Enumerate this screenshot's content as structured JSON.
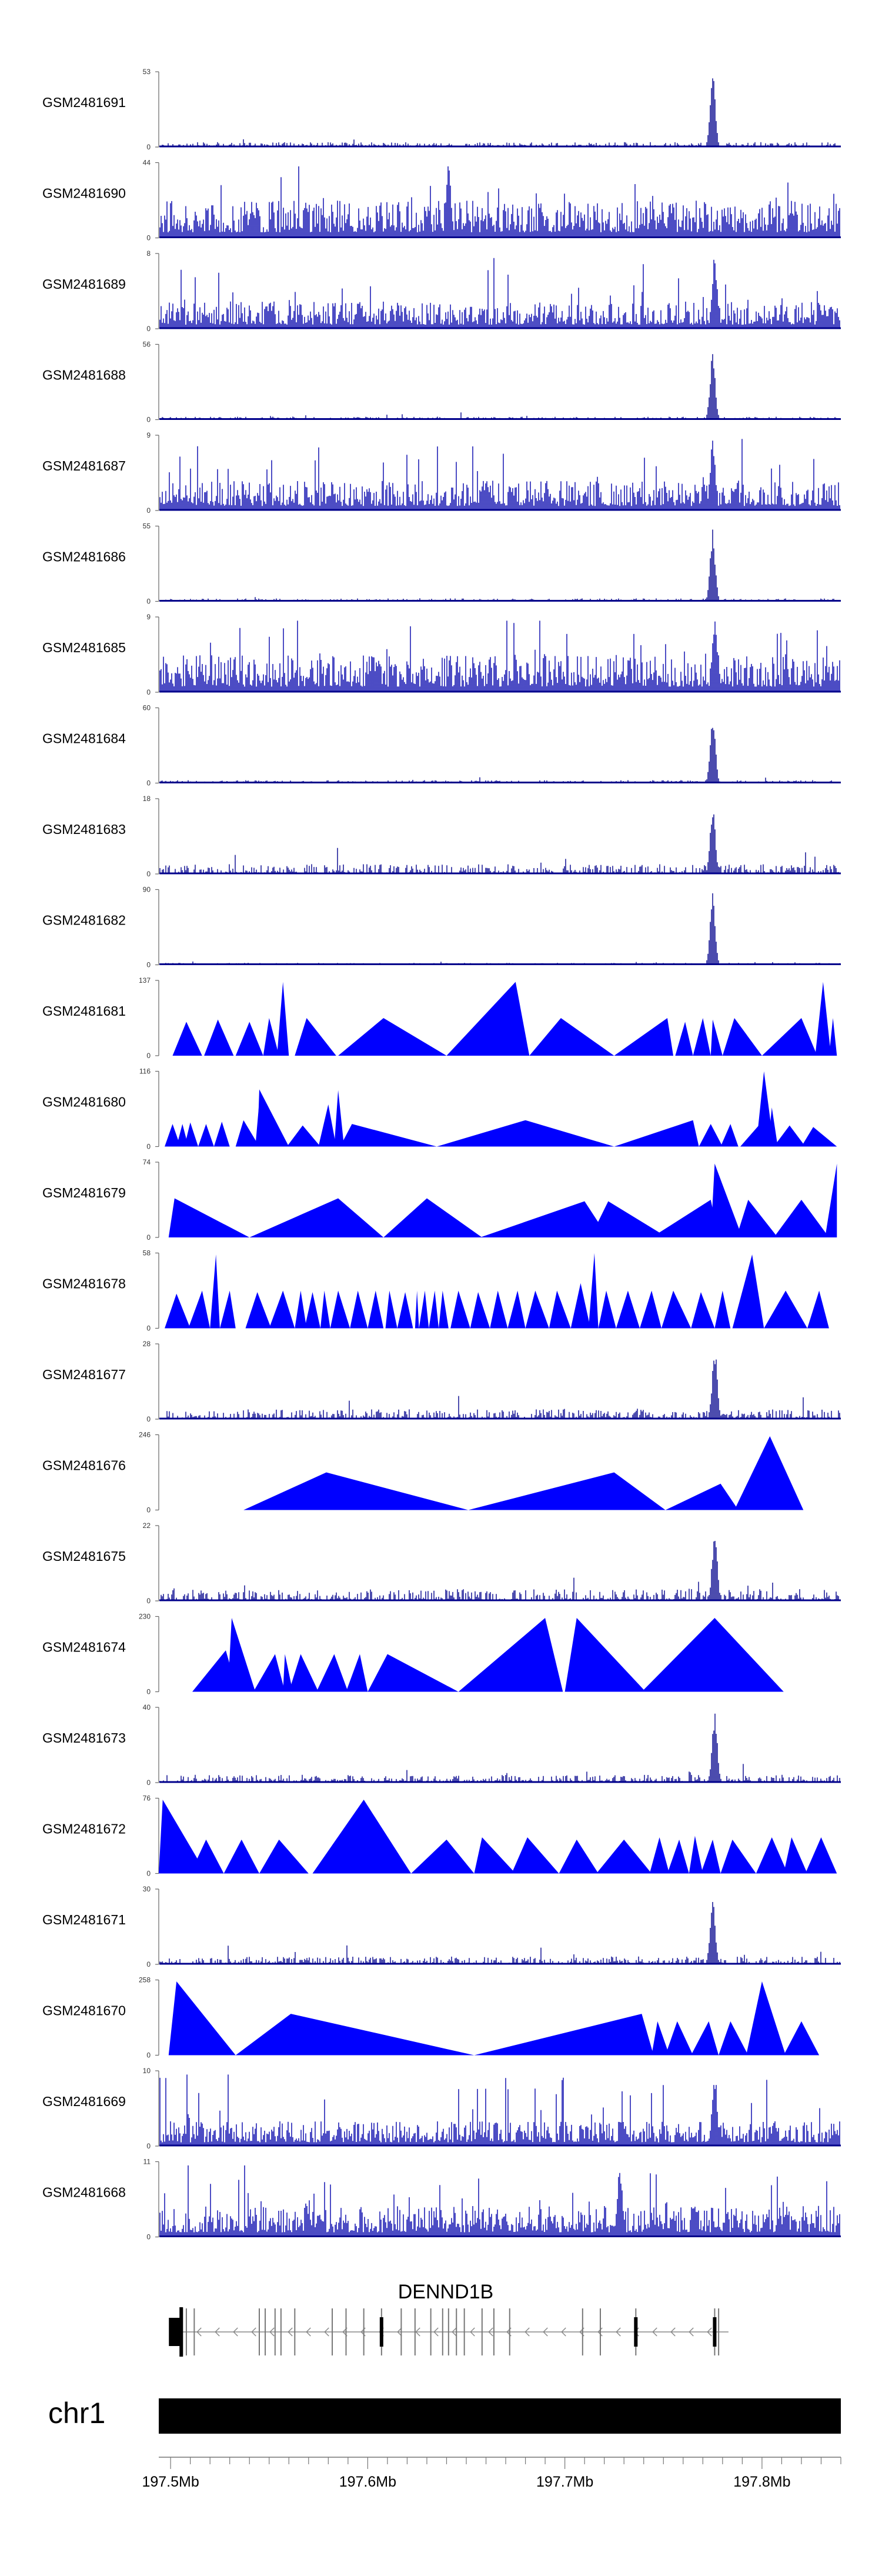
{
  "chart_data": {
    "type": "genome-track-area",
    "chromosome": "chr1",
    "gene": {
      "name": "DENND1B",
      "strand": "-",
      "start_mb": 197.506,
      "end_mb": 197.783,
      "exons_mb": [
        197.506,
        197.508,
        197.512,
        197.545,
        197.548,
        197.553,
        197.556,
        197.563,
        197.582,
        197.589,
        197.598,
        197.607,
        197.617,
        197.624,
        197.632,
        197.638,
        197.641,
        197.645,
        197.649,
        197.658,
        197.664,
        197.672,
        197.709,
        197.718,
        197.736,
        197.776,
        197.778
      ]
    },
    "x_axis": {
      "min_mb": 197.494,
      "max_mb": 197.84,
      "ticks_mb": [
        197.5,
        197.6,
        197.7,
        197.8
      ],
      "tick_labels": [
        "197.5Mb",
        "197.6Mb",
        "197.7Mb",
        "197.8Mb"
      ]
    },
    "series": [
      {
        "name": "GSM2481691",
        "ymax": "53",
        "pattern": "peak",
        "level": 0.05,
        "peak_mb": 197.775,
        "peak": 0.98
      },
      {
        "name": "GSM2481690",
        "ymax": "44",
        "pattern": "dense",
        "level": 0.3,
        "peak_mb": 197.641,
        "peak": 0.98
      },
      {
        "name": "GSM2481689",
        "ymax": "8",
        "pattern": "dense",
        "level": 0.22,
        "peak_mb": 197.776,
        "peak": 0.98
      },
      {
        "name": "GSM2481688",
        "ymax": "56",
        "pattern": "peak",
        "level": 0.03,
        "peak_mb": 197.775,
        "peak": 0.97
      },
      {
        "name": "GSM2481687",
        "ymax": "9",
        "pattern": "dense",
        "level": 0.24,
        "peak_mb": 197.775,
        "peak": 0.98
      },
      {
        "name": "GSM2481686",
        "ymax": "55",
        "pattern": "peak",
        "level": 0.03,
        "peak_mb": 197.775,
        "peak": 0.97
      },
      {
        "name": "GSM2481685",
        "ymax": "9",
        "pattern": "dense",
        "level": 0.3,
        "peak_mb": 197.776,
        "peak": 0.98
      },
      {
        "name": "GSM2481684",
        "ymax": "60",
        "pattern": "peak",
        "level": 0.03,
        "peak_mb": 197.775,
        "peak": 0.97
      },
      {
        "name": "GSM2481683",
        "ymax": "18",
        "pattern": "peak",
        "level": 0.1,
        "peak_mb": 197.775,
        "peak": 0.97
      },
      {
        "name": "GSM2481682",
        "ymax": "90",
        "pattern": "peak",
        "level": 0.02,
        "peak_mb": 197.775,
        "peak": 0.98
      },
      {
        "name": "GSM2481681",
        "ymax": "137",
        "pattern": "tri",
        "peaks": [
          [
            197.501,
            197.508,
            197.516,
            0.45
          ],
          [
            197.517,
            197.524,
            197.532,
            0.48
          ],
          [
            197.533,
            197.54,
            197.547,
            0.45
          ],
          [
            197.547,
            197.55,
            197.555,
            0.5
          ],
          [
            197.554,
            197.557,
            197.56,
            0.98
          ],
          [
            197.563,
            197.569,
            197.584,
            0.5
          ],
          [
            197.585,
            197.608,
            197.64,
            0.5
          ],
          [
            197.64,
            197.675,
            197.682,
            0.98
          ],
          [
            197.682,
            197.698,
            197.725,
            0.5
          ],
          [
            197.725,
            197.752,
            197.755,
            0.5
          ],
          [
            197.756,
            197.761,
            197.765,
            0.45
          ],
          [
            197.765,
            197.77,
            197.774,
            0.5
          ],
          [
            197.774,
            197.775,
            197.78,
            0.48
          ],
          [
            197.78,
            197.786,
            197.8,
            0.5
          ],
          [
            197.8,
            197.82,
            197.828,
            0.5
          ],
          [
            197.827,
            197.831,
            197.835,
            0.98
          ],
          [
            197.834,
            197.836,
            197.838,
            0.5
          ]
        ]
      },
      {
        "name": "GSM2481680",
        "ymax": "116",
        "pattern": "tri",
        "peaks": [
          [
            197.497,
            197.501,
            197.505,
            0.3
          ],
          [
            197.503,
            197.506,
            197.509,
            0.3
          ],
          [
            197.507,
            197.51,
            197.514,
            0.32
          ],
          [
            197.514,
            197.518,
            197.522,
            0.3
          ],
          [
            197.522,
            197.526,
            197.53,
            0.33
          ],
          [
            197.533,
            197.537,
            197.545,
            0.35
          ],
          [
            197.543,
            197.545,
            197.546,
            0.6
          ],
          [
            197.544,
            197.545,
            197.56,
            0.76
          ],
          [
            197.559,
            197.567,
            197.576,
            0.28
          ],
          [
            197.575,
            197.58,
            197.584,
            0.56
          ],
          [
            197.583,
            197.585,
            197.588,
            0.75
          ],
          [
            197.586,
            197.592,
            197.635,
            0.3
          ],
          [
            197.635,
            197.68,
            197.725,
            0.35
          ],
          [
            197.725,
            197.765,
            197.768,
            0.35
          ],
          [
            197.768,
            197.774,
            197.78,
            0.3
          ],
          [
            197.779,
            197.784,
            197.788,
            0.3
          ],
          [
            197.789,
            197.799,
            197.801,
            0.3
          ],
          [
            197.797,
            197.801,
            197.806,
            1.0
          ],
          [
            197.803,
            197.805,
            197.808,
            0.52
          ],
          [
            197.806,
            197.814,
            197.822,
            0.28
          ],
          [
            197.82,
            197.826,
            197.838,
            0.26
          ]
        ]
      },
      {
        "name": "GSM2481679",
        "ymax": "74",
        "pattern": "tri",
        "peaks": [
          [
            197.499,
            197.502,
            197.54,
            0.52
          ],
          [
            197.54,
            197.585,
            197.608,
            0.52
          ],
          [
            197.608,
            197.63,
            197.658,
            0.52
          ],
          [
            197.657,
            197.71,
            197.722,
            0.48
          ],
          [
            197.713,
            197.722,
            197.752,
            0.48
          ],
          [
            197.744,
            197.774,
            197.778,
            0.5
          ],
          [
            197.774,
            197.776,
            197.79,
            0.98
          ],
          [
            197.787,
            197.793,
            197.808,
            0.5
          ],
          [
            197.806,
            197.82,
            197.834,
            0.5
          ],
          [
            197.832,
            197.838,
            197.838,
            0.98
          ]
        ]
      },
      {
        "name": "GSM2481678",
        "ymax": "58",
        "pattern": "tri",
        "peaks": [
          [
            197.497,
            197.503,
            197.51,
            0.46
          ],
          [
            197.509,
            197.516,
            197.52,
            0.5
          ],
          [
            197.52,
            197.523,
            197.525,
            0.98
          ],
          [
            197.525,
            197.53,
            197.533,
            0.5
          ],
          [
            197.538,
            197.544,
            197.551,
            0.48
          ],
          [
            197.55,
            197.557,
            197.563,
            0.5
          ],
          [
            197.563,
            197.566,
            197.569,
            0.5
          ],
          [
            197.568,
            197.572,
            197.576,
            0.48
          ],
          [
            197.576,
            197.578,
            197.581,
            0.5
          ],
          [
            197.581,
            197.585,
            197.591,
            0.5
          ],
          [
            197.591,
            197.595,
            197.6,
            0.5
          ],
          [
            197.6,
            197.604,
            197.608,
            0.5
          ],
          [
            197.609,
            197.611,
            197.615,
            0.5
          ],
          [
            197.615,
            197.619,
            197.623,
            0.48
          ],
          [
            197.624,
            197.625,
            197.626,
            0.5
          ],
          [
            197.626,
            197.629,
            197.631,
            0.5
          ],
          [
            197.631,
            197.634,
            197.636,
            0.5
          ],
          [
            197.636,
            197.638,
            197.641,
            0.5
          ],
          [
            197.642,
            197.646,
            197.652,
            0.5
          ],
          [
            197.652,
            197.656,
            197.662,
            0.48
          ],
          [
            197.662,
            197.666,
            197.671,
            0.5
          ],
          [
            197.671,
            197.676,
            197.68,
            0.5
          ],
          [
            197.68,
            197.685,
            197.692,
            0.5
          ],
          [
            197.692,
            197.696,
            197.703,
            0.5
          ],
          [
            197.703,
            197.708,
            197.713,
            0.6
          ],
          [
            197.712,
            197.715,
            197.717,
            1.0
          ],
          [
            197.717,
            197.721,
            197.726,
            0.5
          ],
          [
            197.726,
            197.732,
            197.738,
            0.5
          ],
          [
            197.738,
            197.744,
            197.749,
            0.5
          ],
          [
            197.749,
            197.755,
            197.764,
            0.5
          ],
          [
            197.764,
            197.769,
            197.776,
            0.48
          ],
          [
            197.776,
            197.78,
            197.784,
            0.5
          ],
          [
            197.785,
            197.795,
            197.801,
            0.98
          ],
          [
            197.801,
            197.812,
            197.823,
            0.5
          ],
          [
            197.823,
            197.829,
            197.834,
            0.5
          ]
        ]
      },
      {
        "name": "GSM2481677",
        "ymax": "28",
        "pattern": "peak",
        "level": 0.1,
        "peak_mb": 197.776,
        "peak": 0.97
      },
      {
        "name": "GSM2481676",
        "ymax": "246",
        "pattern": "tri",
        "peaks": [
          [
            197.537,
            197.579,
            197.651,
            0.5
          ],
          [
            197.651,
            197.725,
            197.751,
            0.5
          ],
          [
            197.751,
            197.779,
            197.788,
            0.35
          ],
          [
            197.786,
            197.804,
            197.821,
            0.98
          ]
        ]
      },
      {
        "name": "GSM2481675",
        "ymax": "22",
        "pattern": "peak",
        "level": 0.12,
        "peak_mb": 197.776,
        "peak": 0.97
      },
      {
        "name": "GSM2481674",
        "ymax": "230",
        "pattern": "tri",
        "peaks": [
          [
            197.511,
            197.528,
            197.534,
            0.55
          ],
          [
            197.529,
            197.531,
            197.543,
            0.98
          ],
          [
            197.542,
            197.553,
            197.558,
            0.5
          ],
          [
            197.557,
            197.558,
            197.562,
            0.5
          ],
          [
            197.56,
            197.566,
            197.575,
            0.5
          ],
          [
            197.574,
            197.583,
            197.59,
            0.5
          ],
          [
            197.589,
            197.596,
            197.6,
            0.5
          ],
          [
            197.6,
            197.61,
            197.646,
            0.5
          ],
          [
            197.646,
            197.69,
            197.699,
            0.98
          ],
          [
            197.7,
            197.706,
            197.741,
            0.98
          ],
          [
            197.739,
            197.776,
            197.811,
            0.98
          ]
        ]
      },
      {
        "name": "GSM2481673",
        "ymax": "40",
        "pattern": "peak",
        "level": 0.08,
        "peak_mb": 197.776,
        "peak": 0.97
      },
      {
        "name": "GSM2481672",
        "ymax": "76",
        "pattern": "tri",
        "peaks": [
          [
            197.494,
            197.496,
            197.518,
            0.98
          ],
          [
            197.51,
            197.518,
            197.527,
            0.45
          ],
          [
            197.527,
            197.536,
            197.545,
            0.45
          ],
          [
            197.545,
            197.555,
            197.57,
            0.45
          ],
          [
            197.572,
            197.598,
            197.622,
            0.98
          ],
          [
            197.622,
            197.64,
            197.654,
            0.45
          ],
          [
            197.654,
            197.658,
            197.675,
            0.48
          ],
          [
            197.673,
            197.681,
            197.697,
            0.48
          ],
          [
            197.697,
            197.706,
            197.717,
            0.45
          ],
          [
            197.716,
            197.73,
            197.744,
            0.45
          ],
          [
            197.743,
            197.748,
            197.753,
            0.48
          ],
          [
            197.752,
            197.758,
            197.763,
            0.45
          ],
          [
            197.763,
            197.766,
            197.77,
            0.5
          ],
          [
            197.769,
            197.775,
            197.779,
            0.45
          ],
          [
            197.779,
            197.785,
            197.797,
            0.45
          ],
          [
            197.797,
            197.805,
            197.813,
            0.48
          ],
          [
            197.811,
            197.815,
            197.823,
            0.48
          ],
          [
            197.822,
            197.83,
            197.838,
            0.48
          ]
        ]
      },
      {
        "name": "GSM2481671",
        "ymax": "30",
        "pattern": "peak",
        "level": 0.08,
        "peak_mb": 197.775,
        "peak": 0.97
      },
      {
        "name": "GSM2481670",
        "ymax": "258",
        "pattern": "tri",
        "peaks": [
          [
            197.499,
            197.503,
            197.533,
            0.98
          ],
          [
            197.533,
            197.561,
            197.654,
            0.55
          ],
          [
            197.654,
            197.739,
            197.745,
            0.55
          ],
          [
            197.744,
            197.747,
            197.753,
            0.45
          ],
          [
            197.751,
            197.757,
            197.765,
            0.45
          ],
          [
            197.764,
            197.773,
            197.778,
            0.45
          ],
          [
            197.778,
            197.784,
            197.793,
            0.45
          ],
          [
            197.792,
            197.8,
            197.812,
            0.98
          ],
          [
            197.811,
            197.82,
            197.829,
            0.45
          ]
        ]
      },
      {
        "name": "GSM2481669",
        "ymax": "10",
        "pattern": "dense",
        "level": 0.2,
        "peak_mb": 197.776,
        "peak": 0.98
      },
      {
        "name": "GSM2481668",
        "ymax": "11",
        "pattern": "dense",
        "level": 0.25,
        "peak_mb": 197.728,
        "peak": 0.95
      }
    ]
  }
}
